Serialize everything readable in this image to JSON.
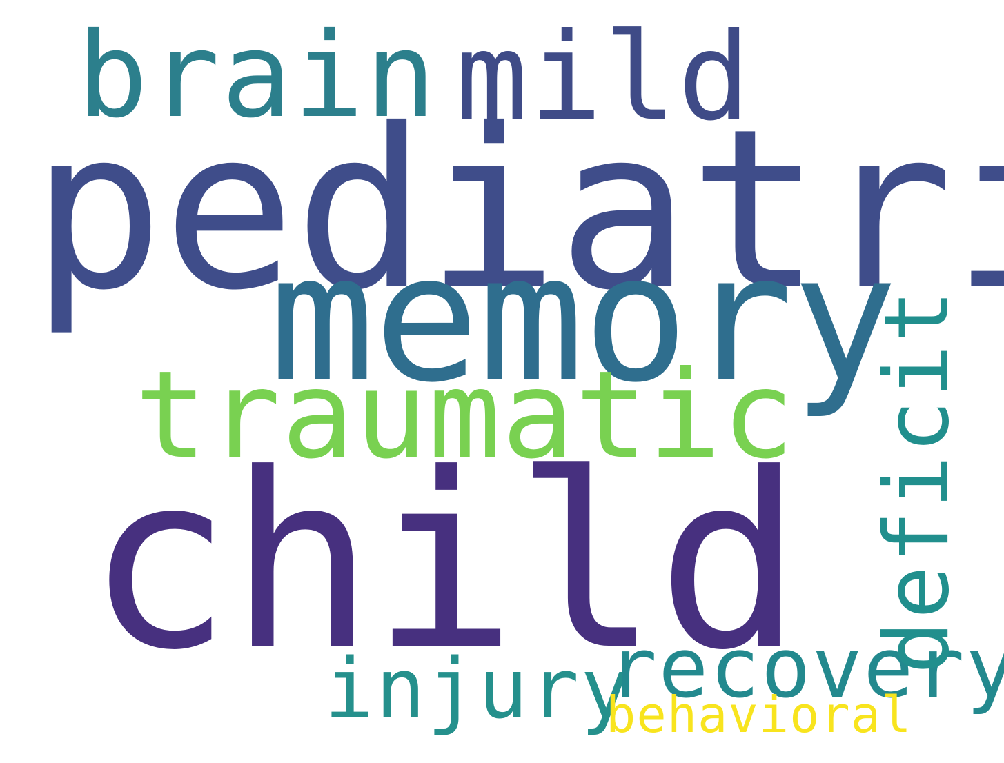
{
  "words": [
    {
      "text": "pediatric",
      "color": "#3f4d8a"
    },
    {
      "text": "brain",
      "color": "#2c7f8c"
    },
    {
      "text": "mild",
      "color": "#3f4b87"
    },
    {
      "text": "memory",
      "color": "#2f6e8e"
    },
    {
      "text": "traumatic",
      "color": "#79d151"
    },
    {
      "text": "child",
      "color": "#47307f"
    },
    {
      "text": "injury",
      "color": "#25908c"
    },
    {
      "text": "recovery",
      "color": "#23898e"
    },
    {
      "text": "behavioral",
      "color": "#f8e41e"
    },
    {
      "text": "deficit",
      "color": "#218f8d"
    }
  ]
}
